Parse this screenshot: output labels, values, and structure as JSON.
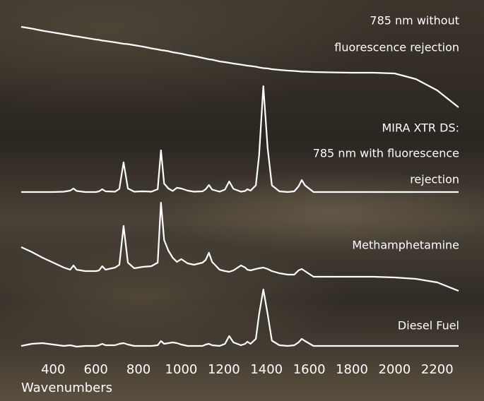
{
  "chart_data": {
    "type": "line",
    "xlabel": "Wavenumbers",
    "x": [
      250,
      300,
      350,
      400,
      450,
      480,
      495,
      510,
      550,
      600,
      615,
      630,
      645,
      690,
      710,
      730,
      750,
      780,
      820,
      860,
      890,
      905,
      920,
      940,
      960,
      980,
      1000,
      1030,
      1060,
      1100,
      1115,
      1130,
      1145,
      1180,
      1205,
      1225,
      1245,
      1280,
      1300,
      1310,
      1325,
      1350,
      1365,
      1385,
      1405,
      1425,
      1460,
      1500,
      1530,
      1550,
      1565,
      1580,
      1620,
      1700,
      1800,
      1900,
      2000,
      2100,
      2200,
      2300
    ],
    "xlim": [
      250,
      2300
    ],
    "xticks": [
      400,
      600,
      800,
      1000,
      1200,
      1400,
      1600,
      1800,
      2000,
      2200
    ],
    "ylim": [
      0,
      100
    ],
    "series": [
      {
        "labels": [
          "785 nm without",
          "fluorescence rejection"
        ],
        "color": "#ffffff",
        "values": [
          96.4,
          95.9,
          95.3,
          94.8,
          94.3,
          94.0,
          93.8,
          93.7,
          93.3,
          92.8,
          92.7,
          92.5,
          92.4,
          92.0,
          91.8,
          91.6,
          91.5,
          91.2,
          90.8,
          90.3,
          90.0,
          89.8,
          89.7,
          89.5,
          89.2,
          89.0,
          88.8,
          88.4,
          88.1,
          87.6,
          87.4,
          87.2,
          87.1,
          86.6,
          86.4,
          86.2,
          86.0,
          85.7,
          85.5,
          85.4,
          85.3,
          85.1,
          84.9,
          84.7,
          84.6,
          84.4,
          84.2,
          84.0,
          83.9,
          83.8,
          83.7,
          83.7,
          83.6,
          83.5,
          83.4,
          83.4,
          83.2,
          81.6,
          78.4,
          73.6
        ]
      },
      {
        "labels": [
          "MIRA XTR DS:",
          "785 nm with fluorescence",
          "rejection"
        ],
        "color": "#ffffff",
        "values": [
          49.6,
          49.6,
          49.6,
          49.6,
          49.7,
          50.0,
          50.6,
          49.9,
          49.6,
          49.6,
          49.8,
          50.4,
          49.8,
          49.7,
          50.5,
          58.0,
          50.6,
          49.7,
          49.8,
          49.7,
          50.4,
          61.4,
          52.0,
          50.6,
          49.9,
          50.8,
          50.6,
          50.0,
          49.7,
          49.8,
          50.4,
          51.6,
          50.3,
          49.7,
          50.3,
          52.6,
          50.5,
          49.7,
          49.9,
          50.4,
          50.0,
          51.5,
          60.0,
          79.6,
          62.0,
          51.5,
          49.8,
          49.6,
          49.8,
          51.2,
          53.0,
          51.5,
          49.6,
          49.6,
          49.6,
          49.6,
          49.6,
          49.6,
          49.6,
          49.6
        ]
      },
      {
        "labels": [
          "Methamphetamine"
        ],
        "color": "#ffffff",
        "values": [
          34.0,
          32.6,
          31.0,
          29.6,
          28.2,
          27.6,
          28.8,
          27.6,
          27.2,
          27.2,
          27.4,
          28.6,
          27.6,
          28.2,
          29.0,
          40.0,
          29.6,
          28.0,
          28.4,
          28.6,
          29.6,
          46.6,
          36.0,
          33.0,
          31.0,
          29.8,
          30.6,
          29.4,
          29.0,
          29.6,
          30.4,
          32.4,
          29.8,
          27.6,
          27.2,
          27.0,
          27.4,
          28.8,
          28.2,
          27.6,
          27.4,
          27.8,
          28.0,
          28.2,
          27.8,
          27.2,
          26.6,
          26.2,
          26.2,
          27.4,
          27.8,
          27.2,
          25.6,
          25.6,
          25.6,
          25.6,
          25.4,
          25.0,
          24.0,
          21.6
        ]
      },
      {
        "labels": [
          "Diesel Fuel"
        ],
        "color": "#ffffff",
        "values": [
          6.0,
          6.6,
          6.8,
          6.4,
          6.0,
          6.2,
          6.0,
          5.8,
          6.0,
          6.0,
          6.2,
          6.6,
          6.2,
          6.2,
          6.6,
          6.8,
          6.4,
          6.0,
          6.0,
          6.0,
          6.2,
          7.4,
          6.6,
          6.8,
          7.0,
          6.8,
          6.4,
          6.0,
          6.0,
          6.0,
          6.4,
          6.6,
          6.2,
          6.0,
          6.6,
          8.8,
          7.0,
          6.2,
          6.6,
          7.2,
          6.6,
          8.0,
          15.0,
          22.0,
          15.0,
          7.5,
          6.2,
          6.0,
          6.2,
          7.0,
          8.0,
          7.4,
          6.0,
          6.0,
          6.0,
          6.0,
          6.0,
          6.0,
          6.0,
          6.0
        ]
      }
    ]
  }
}
